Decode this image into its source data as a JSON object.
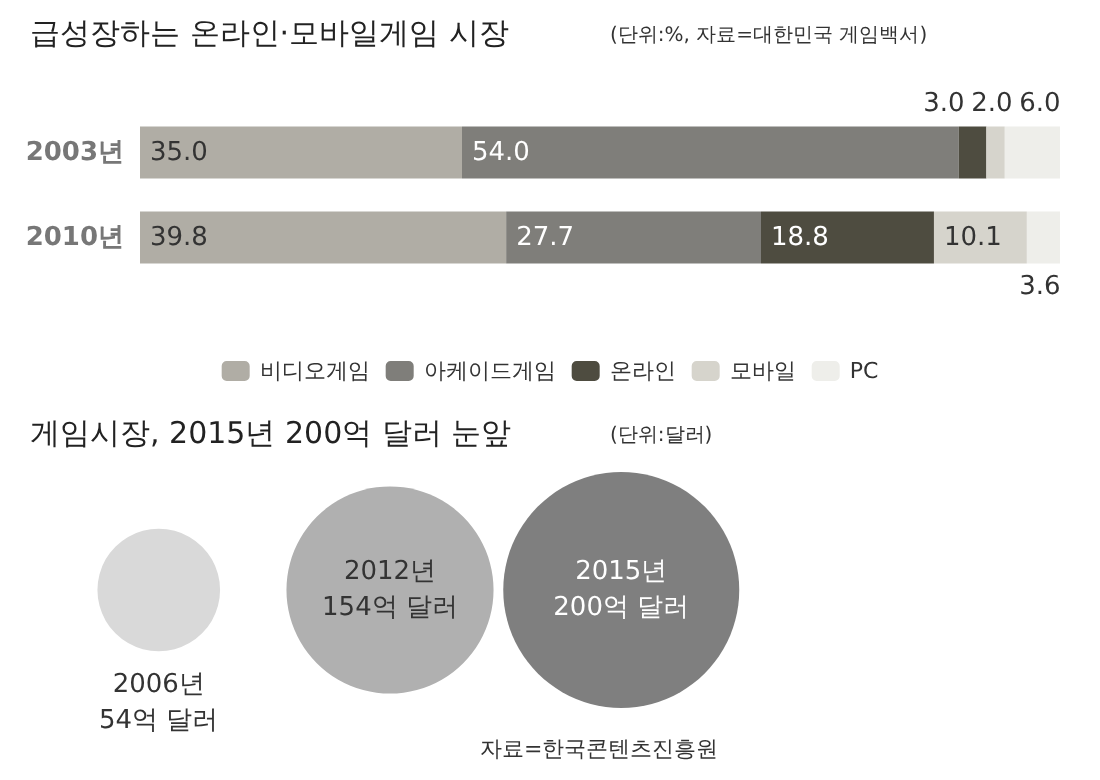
{
  "chart_data": [
    {
      "type": "bar",
      "orientation": "horizontal",
      "stacked": true,
      "title": "급성장하는 온라인·모바일게임 시장",
      "subtitle": "(단위:%, 자료=대한민국 게임백서)",
      "categories": [
        "2003년",
        "2010년"
      ],
      "xlim": [
        0,
        100
      ],
      "tick_labels": "y",
      "legend": "bottom",
      "grid": false,
      "series": [
        {
          "name": "비디오게임",
          "color": "#b0ada5",
          "values": [
            35.0,
            39.8
          ],
          "value_labels": [
            "35.0",
            "39.8"
          ]
        },
        {
          "name": "아케이드게임",
          "color": "#7f7e7a",
          "values": [
            54.0,
            27.7
          ],
          "value_labels": [
            "54.0",
            "27.7"
          ]
        },
        {
          "name": "온라인",
          "color": "#4e4c40",
          "values": [
            3.0,
            18.8
          ],
          "value_labels": [
            "3.0",
            "18.8"
          ]
        },
        {
          "name": "모바일",
          "color": "#d6d4cc",
          "values": [
            2.0,
            10.1
          ],
          "value_labels": [
            "2.0",
            "10.1"
          ]
        },
        {
          "name": "PC",
          "color": "#eeeeea",
          "values": [
            6.0,
            3.6
          ],
          "value_labels": [
            "6.0",
            "3.6"
          ]
        }
      ]
    },
    {
      "type": "other",
      "title": "게임시장, 2015년 200억 달러 눈앞",
      "subtitle": "(단위:달러)",
      "categories": [
        "2006년",
        "2012년",
        "2015년"
      ],
      "values": [
        54,
        154,
        200
      ],
      "value_labels": [
        "54억 달러",
        "154억 달러",
        "200억 달러"
      ],
      "colors": [
        "#d9d9d9",
        "#b0b0b0",
        "#7f7f7f"
      ],
      "annotations": [
        "자료=한국콘텐츠진흥원"
      ]
    }
  ]
}
